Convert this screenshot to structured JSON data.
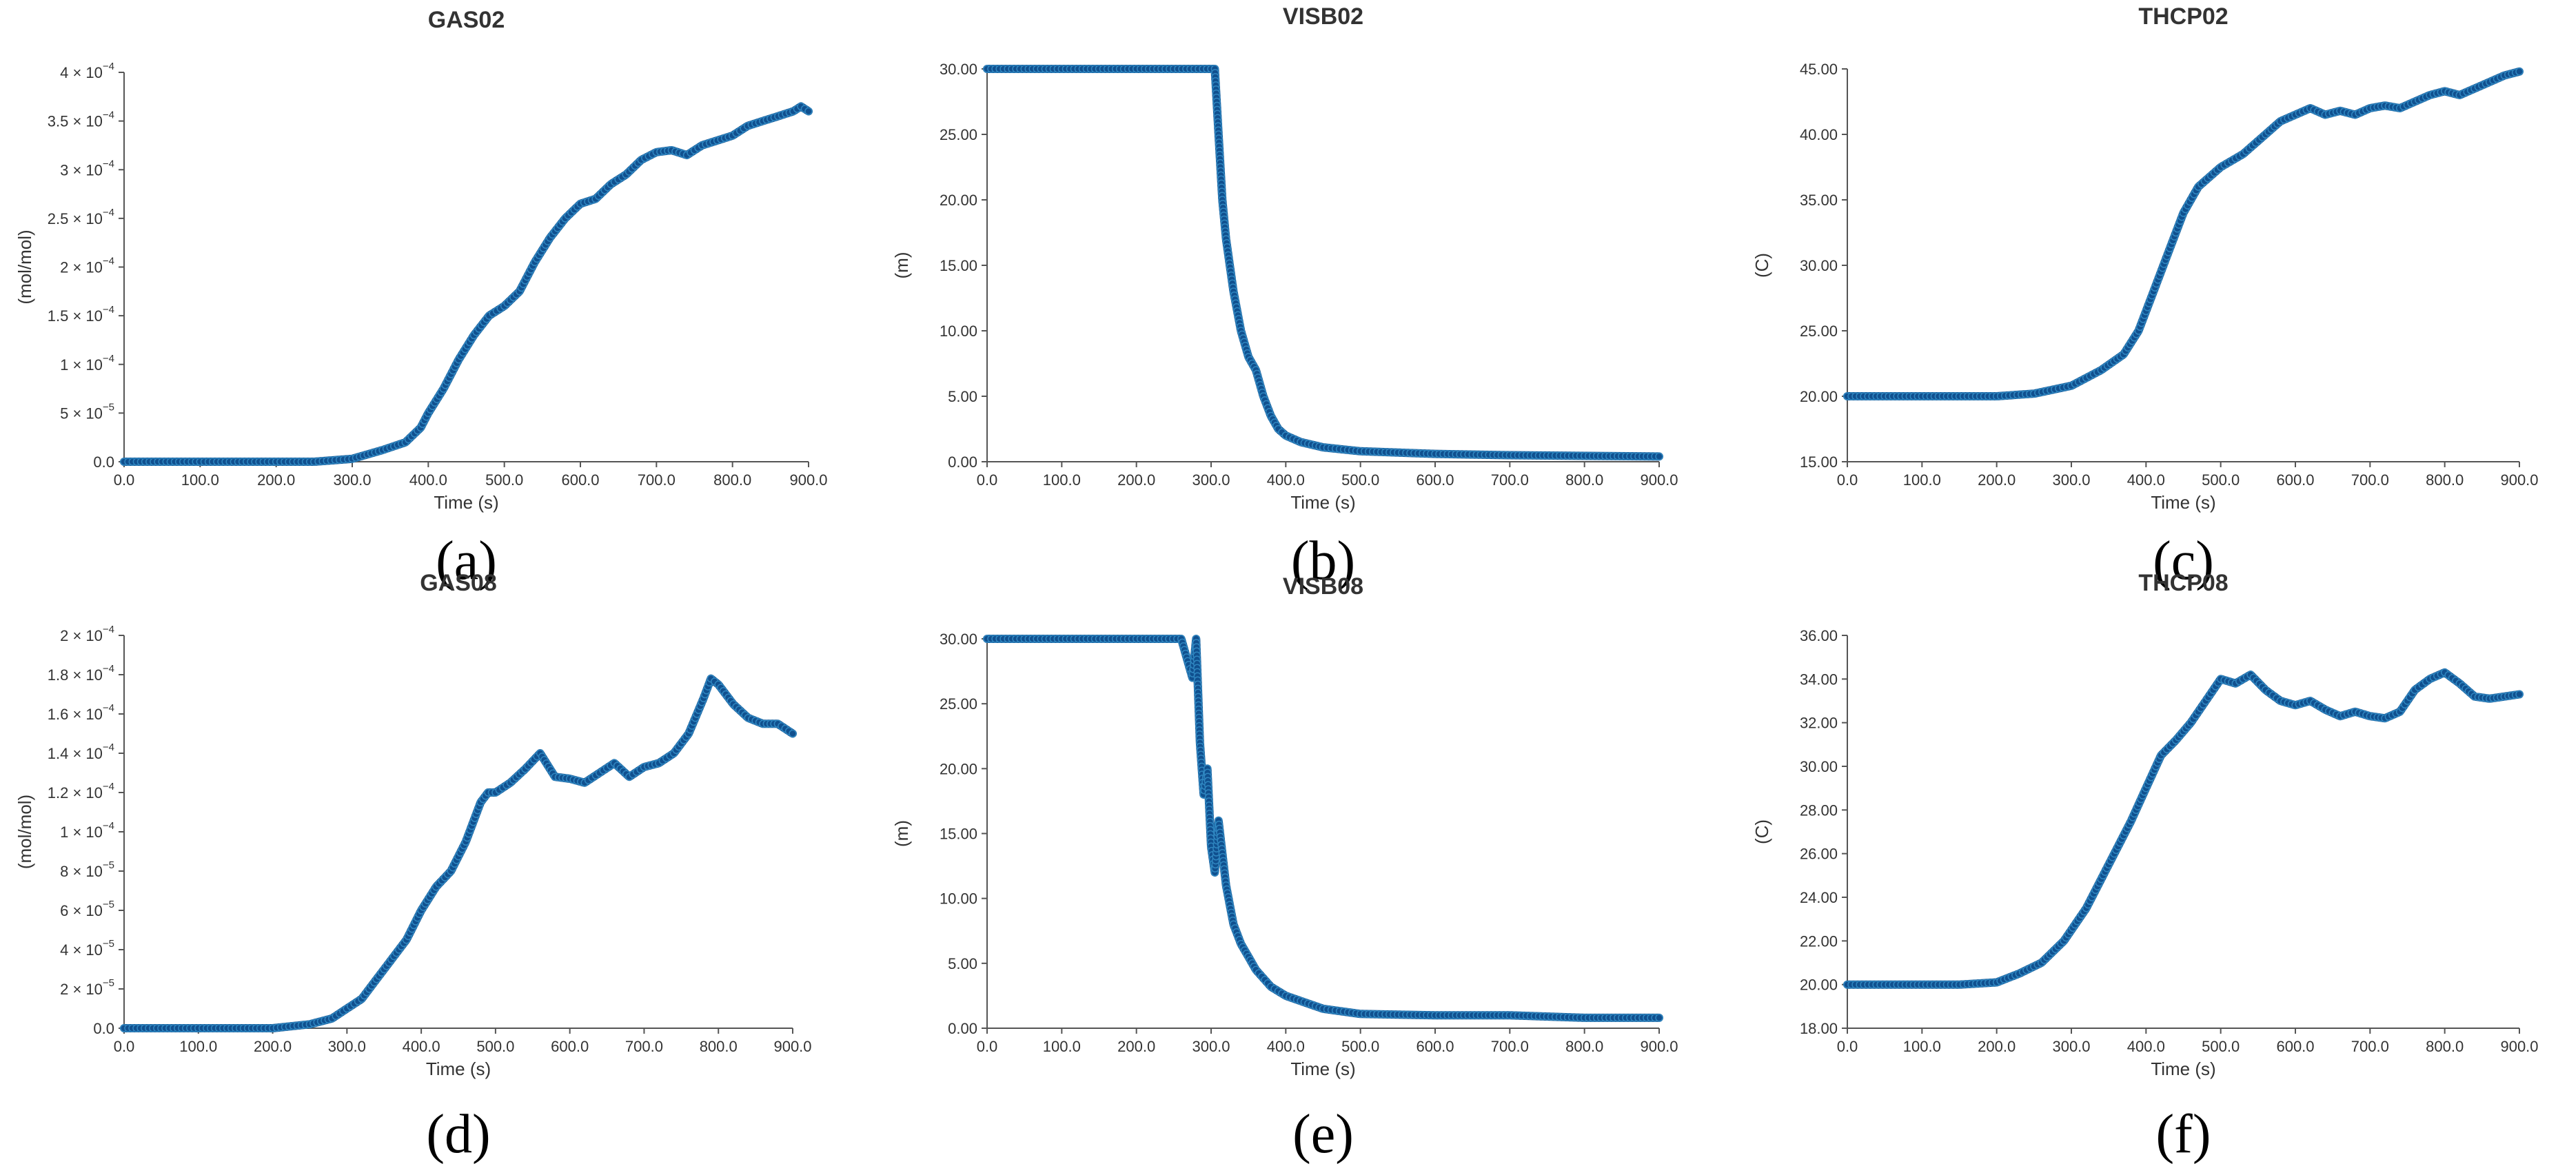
{
  "figure": {
    "panel_labels": [
      "(a)",
      "(b)",
      "(c)",
      "(d)",
      "(e)",
      "(f)"
    ]
  },
  "colors": {
    "series": "#10508f",
    "marker_edge": "#2f86c0",
    "axis": "#555555",
    "text": "#333333"
  },
  "chart_data": [
    {
      "type": "scatter",
      "id": "a",
      "title": "GAS02",
      "xlabel": "Time (s)",
      "ylabel": "(mol/mol)",
      "xlim": [
        0,
        900
      ],
      "ylim": [
        0,
        0.0004
      ],
      "x_ticks": [
        "0.0",
        "100.0",
        "200.0",
        "300.0",
        "400.0",
        "500.0",
        "600.0",
        "700.0",
        "800.0",
        "900.0"
      ],
      "y_ticks": [
        {
          "value": 0,
          "mant": "0.0",
          "exp": ""
        },
        {
          "value": 5e-05,
          "mant": "5 × 10",
          "exp": "−5"
        },
        {
          "value": 0.0001,
          "mant": "1 × 10",
          "exp": "−4"
        },
        {
          "value": 0.00015,
          "mant": "1.5 × 10",
          "exp": "−4"
        },
        {
          "value": 0.0002,
          "mant": "2 × 10",
          "exp": "−4"
        },
        {
          "value": 0.00025,
          "mant": "2.5 × 10",
          "exp": "−4"
        },
        {
          "value": 0.0003,
          "mant": "3 × 10",
          "exp": "−4"
        },
        {
          "value": 0.00035,
          "mant": "3.5 × 10",
          "exp": "−4"
        },
        {
          "value": 0.0004,
          "mant": "4 × 10",
          "exp": "−4"
        }
      ],
      "series": [
        {
          "name": "GAS02",
          "x": [
            0,
            100,
            200,
            250,
            300,
            340,
            370,
            390,
            400,
            420,
            440,
            460,
            480,
            500,
            520,
            540,
            560,
            580,
            600,
            620,
            640,
            660,
            680,
            700,
            720,
            740,
            760,
            780,
            800,
            820,
            840,
            860,
            880,
            890,
            900
          ],
          "y": [
            0,
            0,
            0,
            0,
            3e-06,
            1.2e-05,
            2e-05,
            3.5e-05,
            5e-05,
            7.5e-05,
            0.000105,
            0.00013,
            0.00015,
            0.00016,
            0.000175,
            0.000205,
            0.00023,
            0.00025,
            0.000265,
            0.00027,
            0.000285,
            0.000295,
            0.00031,
            0.000318,
            0.00032,
            0.000315,
            0.000325,
            0.00033,
            0.000335,
            0.000345,
            0.00035,
            0.000355,
            0.00036,
            0.000365,
            0.00036
          ]
        }
      ]
    },
    {
      "type": "scatter",
      "id": "b",
      "title": "VISB02",
      "xlabel": "Time (s)",
      "ylabel": "(m)",
      "xlim": [
        0,
        900
      ],
      "ylim": [
        0,
        30
      ],
      "x_ticks": [
        "0.0",
        "100.0",
        "200.0",
        "300.0",
        "400.0",
        "500.0",
        "600.0",
        "700.0",
        "800.0",
        "900.0"
      ],
      "y_ticks": [
        {
          "value": 0,
          "mant": "0.00",
          "exp": ""
        },
        {
          "value": 5,
          "mant": "5.00",
          "exp": ""
        },
        {
          "value": 10,
          "mant": "10.00",
          "exp": ""
        },
        {
          "value": 15,
          "mant": "15.00",
          "exp": ""
        },
        {
          "value": 20,
          "mant": "20.00",
          "exp": ""
        },
        {
          "value": 25,
          "mant": "25.00",
          "exp": ""
        },
        {
          "value": 30,
          "mant": "30.00",
          "exp": ""
        }
      ],
      "series": [
        {
          "name": "VISB02",
          "x": [
            0,
            100,
            200,
            300,
            305,
            310,
            315,
            320,
            330,
            340,
            350,
            360,
            370,
            380,
            390,
            400,
            420,
            450,
            500,
            600,
            700,
            800,
            900
          ],
          "y": [
            30,
            30,
            30,
            30,
            30,
            25,
            20,
            17,
            13,
            10,
            8,
            7,
            5,
            3.5,
            2.5,
            2,
            1.5,
            1.1,
            0.8,
            0.6,
            0.5,
            0.45,
            0.4
          ]
        }
      ]
    },
    {
      "type": "scatter",
      "id": "c",
      "title": "THCP02",
      "xlabel": "Time (s)",
      "ylabel": "(C)",
      "xlim": [
        0,
        900
      ],
      "ylim": [
        15,
        45
      ],
      "x_ticks": [
        "0.0",
        "100.0",
        "200.0",
        "300.0",
        "400.0",
        "500.0",
        "600.0",
        "700.0",
        "800.0",
        "900.0"
      ],
      "y_ticks": [
        {
          "value": 15,
          "mant": "15.00",
          "exp": ""
        },
        {
          "value": 20,
          "mant": "20.00",
          "exp": ""
        },
        {
          "value": 25,
          "mant": "25.00",
          "exp": ""
        },
        {
          "value": 30,
          "mant": "30.00",
          "exp": ""
        },
        {
          "value": 35,
          "mant": "35.00",
          "exp": ""
        },
        {
          "value": 40,
          "mant": "40.00",
          "exp": ""
        },
        {
          "value": 45,
          "mant": "45.00",
          "exp": ""
        }
      ],
      "series": [
        {
          "name": "THCP02",
          "x": [
            0,
            100,
            200,
            250,
            300,
            340,
            370,
            390,
            410,
            430,
            450,
            470,
            500,
            530,
            560,
            580,
            600,
            620,
            640,
            660,
            680,
            700,
            720,
            740,
            760,
            780,
            800,
            820,
            840,
            860,
            880,
            900
          ],
          "y": [
            20,
            20,
            20,
            20.2,
            20.8,
            22,
            23.2,
            25,
            28,
            31,
            34,
            36,
            37.5,
            38.5,
            40,
            41,
            41.5,
            42,
            41.5,
            41.8,
            41.5,
            42,
            42.2,
            42,
            42.5,
            43,
            43.3,
            43,
            43.5,
            44,
            44.5,
            44.8
          ]
        }
      ]
    },
    {
      "type": "scatter",
      "id": "d",
      "title": "GAS08",
      "xlabel": "Time (s)",
      "ylabel": "(mol/mol)",
      "xlim": [
        0,
        900
      ],
      "ylim": [
        0,
        0.0002
      ],
      "x_ticks": [
        "0.0",
        "100.0",
        "200.0",
        "300.0",
        "400.0",
        "500.0",
        "600.0",
        "700.0",
        "800.0",
        "900.0"
      ],
      "y_ticks": [
        {
          "value": 0,
          "mant": "0.0",
          "exp": ""
        },
        {
          "value": 2e-05,
          "mant": "2 × 10",
          "exp": "−5"
        },
        {
          "value": 4e-05,
          "mant": "4 × 10",
          "exp": "−5"
        },
        {
          "value": 6e-05,
          "mant": "6 × 10",
          "exp": "−5"
        },
        {
          "value": 8e-05,
          "mant": "8 × 10",
          "exp": "−5"
        },
        {
          "value": 0.0001,
          "mant": "1 × 10",
          "exp": "−4"
        },
        {
          "value": 0.00012,
          "mant": "1.2 × 10",
          "exp": "−4"
        },
        {
          "value": 0.00014,
          "mant": "1.4 × 10",
          "exp": "−4"
        },
        {
          "value": 0.00016,
          "mant": "1.6 × 10",
          "exp": "−4"
        },
        {
          "value": 0.00018,
          "mant": "1.8 × 10",
          "exp": "−4"
        },
        {
          "value": 0.0002,
          "mant": "2 × 10",
          "exp": "−4"
        }
      ],
      "series": [
        {
          "name": "GAS08",
          "x": [
            0,
            100,
            200,
            250,
            280,
            300,
            320,
            340,
            360,
            380,
            400,
            420,
            440,
            460,
            480,
            490,
            500,
            520,
            540,
            560,
            580,
            600,
            620,
            640,
            660,
            680,
            700,
            720,
            740,
            760,
            780,
            790,
            800,
            820,
            840,
            860,
            880,
            900
          ],
          "y": [
            0,
            0,
            0,
            2e-06,
            5e-06,
            1e-05,
            1.5e-05,
            2.5e-05,
            3.5e-05,
            4.5e-05,
            6e-05,
            7.2e-05,
            8e-05,
            9.5e-05,
            0.000115,
            0.00012,
            0.00012,
            0.000125,
            0.000132,
            0.00014,
            0.000128,
            0.000127,
            0.000125,
            0.00013,
            0.000135,
            0.000128,
            0.000133,
            0.000135,
            0.00014,
            0.00015,
            0.000168,
            0.000178,
            0.000175,
            0.000165,
            0.000158,
            0.000155,
            0.000155,
            0.00015
          ]
        }
      ]
    },
    {
      "type": "scatter",
      "id": "e",
      "title": "VISB08",
      "xlabel": "Time (s)",
      "ylabel": "(m)",
      "xlim": [
        0,
        900
      ],
      "ylim": [
        0,
        30
      ],
      "x_ticks": [
        "0.0",
        "100.0",
        "200.0",
        "300.0",
        "400.0",
        "500.0",
        "600.0",
        "700.0",
        "800.0",
        "900.0"
      ],
      "y_ticks": [
        {
          "value": 0,
          "mant": "0.00",
          "exp": ""
        },
        {
          "value": 5,
          "mant": "5.00",
          "exp": ""
        },
        {
          "value": 10,
          "mant": "10.00",
          "exp": ""
        },
        {
          "value": 15,
          "mant": "15.00",
          "exp": ""
        },
        {
          "value": 20,
          "mant": "20.00",
          "exp": ""
        },
        {
          "value": 25,
          "mant": "25.00",
          "exp": ""
        },
        {
          "value": 30,
          "mant": "30.00",
          "exp": ""
        }
      ],
      "series": [
        {
          "name": "VISB08",
          "x": [
            0,
            100,
            200,
            260,
            270,
            275,
            280,
            285,
            290,
            295,
            300,
            305,
            310,
            320,
            330,
            340,
            350,
            360,
            380,
            400,
            450,
            500,
            600,
            700,
            800,
            900
          ],
          "y": [
            30,
            30,
            30,
            30,
            28,
            27,
            30,
            22,
            18,
            20,
            14,
            12,
            16,
            11,
            8,
            6.5,
            5.5,
            4.5,
            3.2,
            2.5,
            1.5,
            1.1,
            1,
            1,
            0.8,
            0.8
          ]
        }
      ]
    },
    {
      "type": "scatter",
      "id": "f",
      "title": "THCP08",
      "xlabel": "Time (s)",
      "ylabel": "(C)",
      "xlim": [
        0,
        900
      ],
      "ylim": [
        18,
        36
      ],
      "x_ticks": [
        "0.0",
        "100.0",
        "200.0",
        "300.0",
        "400.0",
        "500.0",
        "600.0",
        "700.0",
        "800.0",
        "900.0"
      ],
      "y_ticks": [
        {
          "value": 18,
          "mant": "18.00",
          "exp": ""
        },
        {
          "value": 20,
          "mant": "20.00",
          "exp": ""
        },
        {
          "value": 22,
          "mant": "22.00",
          "exp": ""
        },
        {
          "value": 24,
          "mant": "24.00",
          "exp": ""
        },
        {
          "value": 26,
          "mant": "26.00",
          "exp": ""
        },
        {
          "value": 28,
          "mant": "28.00",
          "exp": ""
        },
        {
          "value": 30,
          "mant": "30.00",
          "exp": ""
        },
        {
          "value": 32,
          "mant": "32.00",
          "exp": ""
        },
        {
          "value": 34,
          "mant": "34.00",
          "exp": ""
        },
        {
          "value": 36,
          "mant": "36.00",
          "exp": ""
        }
      ],
      "series": [
        {
          "name": "THCP08",
          "x": [
            0,
            100,
            150,
            200,
            230,
            260,
            290,
            320,
            350,
            380,
            400,
            420,
            440,
            460,
            480,
            500,
            520,
            540,
            560,
            580,
            600,
            620,
            640,
            660,
            680,
            700,
            720,
            740,
            760,
            780,
            800,
            820,
            840,
            860,
            880,
            900
          ],
          "y": [
            20,
            20,
            20,
            20.1,
            20.5,
            21,
            22,
            23.5,
            25.5,
            27.5,
            29,
            30.5,
            31.2,
            32,
            33,
            34,
            33.8,
            34.2,
            33.5,
            33,
            32.8,
            33,
            32.6,
            32.3,
            32.5,
            32.3,
            32.2,
            32.5,
            33.5,
            34,
            34.3,
            33.8,
            33.2,
            33.1,
            33.2,
            33.3
          ]
        }
      ]
    }
  ]
}
